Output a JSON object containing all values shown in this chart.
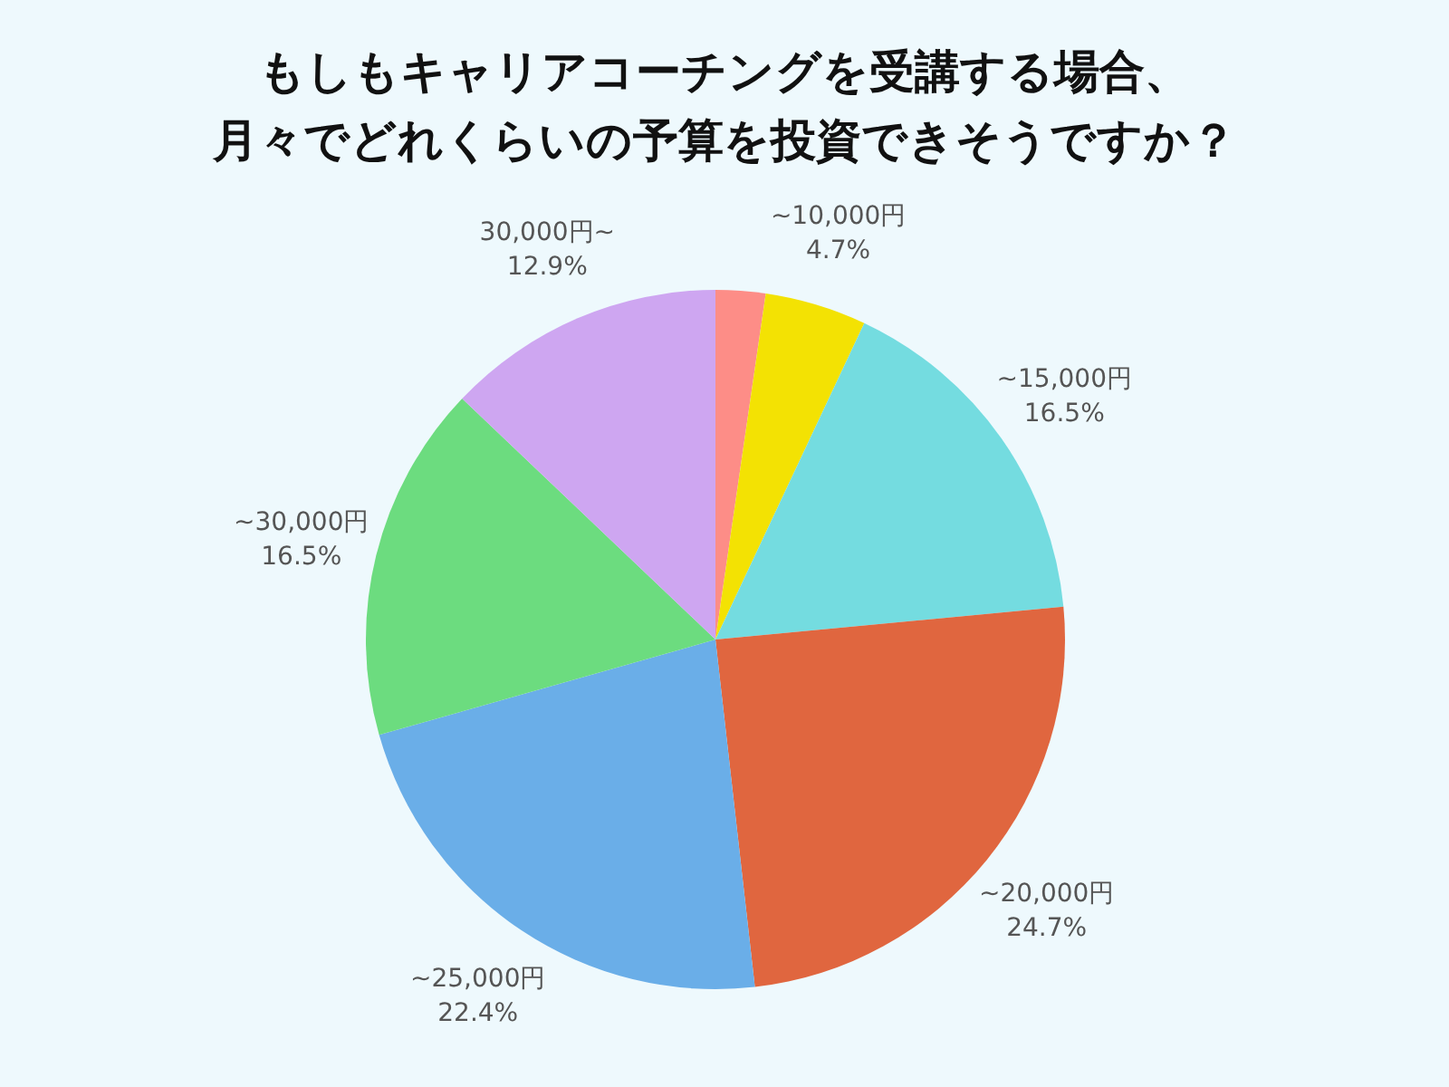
{
  "chart_data": {
    "type": "pie",
    "title": "もしもキャリアコーチングを受講する場合、月々でどれくらいの予算を投資できそうですか？",
    "categories": [
      null,
      "~10,000円",
      "~15,000円",
      "~20,000円",
      "~25,000円",
      "~30,000円",
      "30,000円~"
    ],
    "values": [
      2.3,
      4.7,
      16.5,
      24.7,
      22.4,
      16.5,
      12.9
    ],
    "value_labels": [
      null,
      "4.7%",
      "16.5%",
      "24.7%",
      "22.4%",
      "16.5%",
      "12.9%"
    ],
    "colors": [
      "#fd8d87",
      "#f3e203",
      "#74dce0",
      "#e0663f",
      "#6aaee8",
      "#6cdc7f",
      "#cea6f1"
    ]
  }
}
